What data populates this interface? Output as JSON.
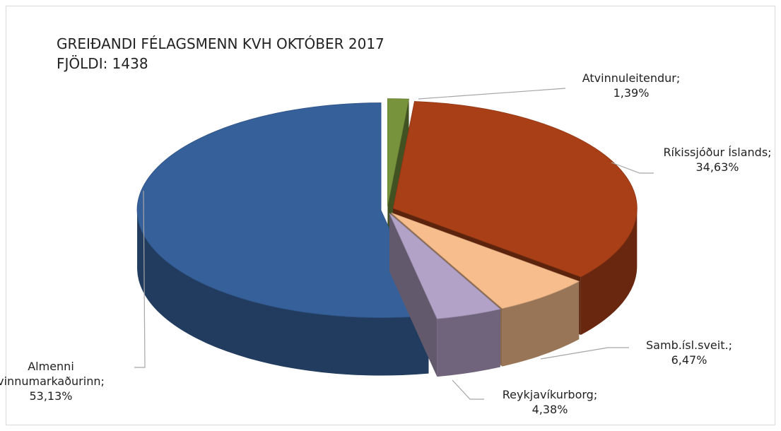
{
  "chart_data": {
    "type": "pie3d",
    "title": "GREIÐANDI FÉLAGSMENN KVH OKTÓBER 2017",
    "subtitle": "FJÖLDI: 1438",
    "categories": [
      "Atvinnuleitendur",
      "Ríkissjóður Íslands",
      "Samb.ísl.sveit.",
      "Reykjavíkurborg",
      "Almenni vinnumarkaðurinn"
    ],
    "values": [
      1.39,
      34.63,
      6.47,
      4.38,
      53.13
    ],
    "value_labels": [
      "1,39%",
      "34,63%",
      "6,47%",
      "4,38%",
      "53,13%"
    ],
    "separator": ";",
    "colors": [
      "#77933c",
      "#a83f17",
      "#f7bd8d",
      "#b3a2c7",
      "#36609a"
    ]
  }
}
